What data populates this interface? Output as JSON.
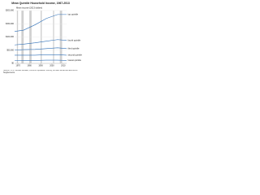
{
  "chart_data": {
    "type": "line",
    "title": "Mean Quintile Household Income, 1967-2013",
    "subtitle": "Mean income (2013 dollars)",
    "note": "Source: U.S. Census Bureau, Current Population Survey, Annual Social and Economic Supplements.",
    "x": [
      1967,
      1975,
      1985,
      1995,
      2005,
      2013
    ],
    "series": [
      {
        "name": "top quintile",
        "color": "#2e6fb7",
        "values": [
          121000,
          126000,
          146000,
          170000,
          185000,
          185000
        ]
      },
      {
        "name": "fourth quintile",
        "color": "#2e6fb7",
        "values": [
          70000,
          73000,
          78000,
          84000,
          90000,
          87000
        ]
      },
      {
        "name": "third quintile",
        "color": "#2e6fb7",
        "values": [
          50000,
          52000,
          53000,
          56000,
          59000,
          56000
        ]
      },
      {
        "name": "second quintile",
        "color": "#2e6fb7",
        "values": [
          31000,
          31000,
          31000,
          33000,
          33000,
          31000
        ]
      },
      {
        "name": "lowest quintile",
        "color": "#2e6fb7",
        "values": [
          10000,
          11000,
          11000,
          12000,
          12000,
          11000
        ]
      }
    ],
    "recessions": [
      [
        1969,
        1970
      ],
      [
        1973,
        1975
      ],
      [
        1980,
        1982
      ],
      [
        1990,
        1991
      ],
      [
        2001,
        2001.9
      ],
      [
        2007,
        2009
      ]
    ],
    "recession_color": "#d0d0d0",
    "xlim": [
      1967,
      2013
    ],
    "xticks": [
      1970,
      1980,
      1990,
      2000,
      2010
    ],
    "ylim": [
      0,
      200000
    ],
    "yticks": [
      {
        "value": 0,
        "label": "$0"
      },
      {
        "value": 50000,
        "label": "$50,000"
      },
      {
        "value": 100000,
        "label": "$100,000"
      },
      {
        "value": 150000,
        "label": "$150,000"
      },
      {
        "value": 200000,
        "label": "$200,000"
      }
    ],
    "grid": true
  }
}
